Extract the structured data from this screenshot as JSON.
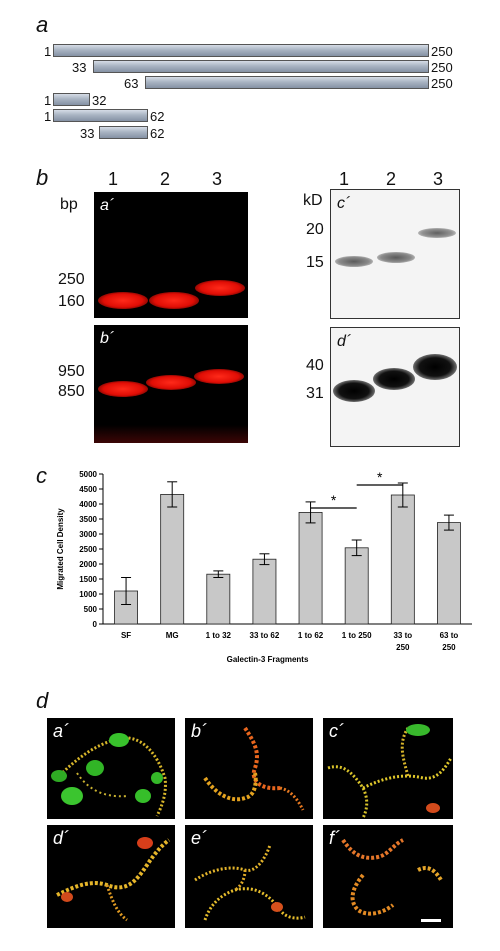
{
  "panel_a": {
    "letter": "a",
    "constructs": [
      {
        "start": "1",
        "end": "250"
      },
      {
        "start": "33",
        "end": "250"
      },
      {
        "start": "63",
        "end": "250"
      },
      {
        "start": "1",
        "end": "32"
      },
      {
        "start": "1",
        "end": "62"
      },
      {
        "start": "33",
        "end": "62"
      }
    ]
  },
  "panel_b": {
    "letter": "b",
    "lane_numbers": [
      "1",
      "2",
      "3"
    ],
    "gel_top": {
      "label": "a´",
      "unit": "bp",
      "markers": [
        "250",
        "160"
      ]
    },
    "gel_bottom": {
      "label": "b´",
      "markers": [
        "950",
        "850"
      ]
    },
    "blot_top": {
      "label": "c´",
      "unit": "kD",
      "markers": [
        "20",
        "15"
      ]
    },
    "blot_bottom": {
      "label": "d´",
      "markers": [
        "40",
        "31"
      ]
    }
  },
  "panel_c": {
    "letter": "c",
    "significance_marks": [
      "*",
      "*"
    ]
  },
  "chart_data": {
    "type": "bar",
    "categories": [
      "SF",
      "MG",
      "1 to 32",
      "33 to 62",
      "1 to 62",
      "1 to 250",
      "33 to 250",
      "63 to 250"
    ],
    "category_lines": [
      [
        "SF"
      ],
      [
        "MG"
      ],
      [
        "1 to 32"
      ],
      [
        "33 to 62"
      ],
      [
        "1 to 62"
      ],
      [
        "1 to 250"
      ],
      [
        "33 to",
        "250"
      ],
      [
        "63 to",
        "250"
      ]
    ],
    "values": [
      1100,
      4320,
      1660,
      2160,
      3720,
      2540,
      4300,
      3380
    ],
    "errors": [
      450,
      420,
      110,
      180,
      350,
      260,
      400,
      250
    ],
    "xlabel": "Galectin-3 Fragments",
    "ylabel": "Migrated Cell Density",
    "ylim": [
      0,
      5000
    ],
    "yticks": [
      "0",
      "500",
      "1000",
      "1500",
      "2000",
      "2500",
      "3000",
      "3500",
      "4000",
      "4500",
      "5000"
    ],
    "grid": false,
    "bar_color": "#c8c8c8"
  },
  "panel_d": {
    "letter": "d",
    "images": [
      {
        "label": "a´"
      },
      {
        "label": "b´"
      },
      {
        "label": "c´"
      },
      {
        "label": "d´"
      },
      {
        "label": "e´"
      },
      {
        "label": "f´"
      }
    ]
  }
}
